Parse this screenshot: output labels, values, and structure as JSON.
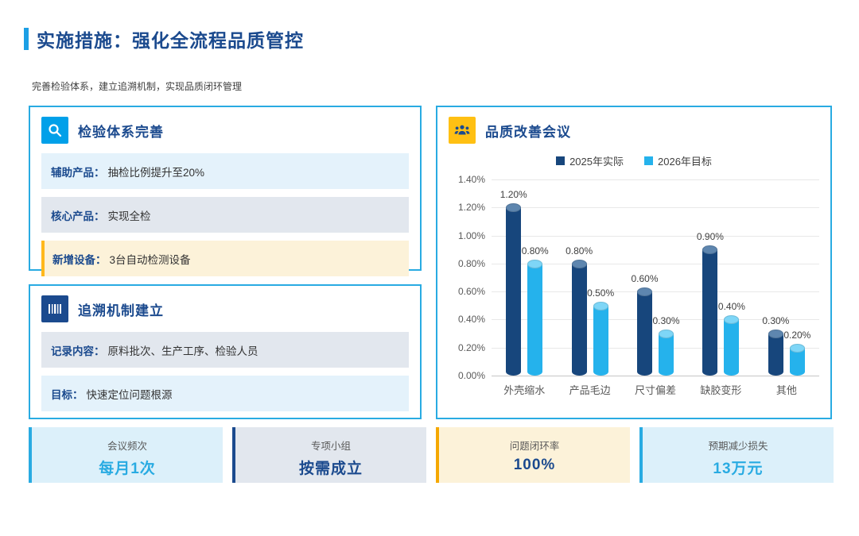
{
  "page": {
    "title": "实施措施：强化全流程品质管控",
    "subtitle": "完善检验体系，建立追溯机制，实现品质闭环管理"
  },
  "panels": {
    "inspection": {
      "icon": "search-icon",
      "title": "检验体系完善",
      "rows": [
        {
          "label": "辅助产品：",
          "text": "抽检比例提升至20%"
        },
        {
          "label": "核心产品：",
          "text": "实现全检"
        },
        {
          "label": "新增设备：",
          "text": "3台自动检测设备"
        }
      ]
    },
    "traceability": {
      "icon": "barcode-icon",
      "title": "追溯机制建立",
      "rows": [
        {
          "label": "记录内容：",
          "text": "原料批次、生产工序、检验人员"
        },
        {
          "label": "目标：",
          "text": "快速定位问题根源"
        }
      ]
    },
    "meeting": {
      "icon": "people-icon",
      "title": "品质改善会议"
    }
  },
  "chart_data": {
    "type": "bar",
    "title": "品质改善会议",
    "categories": [
      "外壳缩水",
      "产品毛边",
      "尺寸偏差",
      "缺胶变形",
      "其他"
    ],
    "series": [
      {
        "name": "2025年实际",
        "color": "#17467C",
        "cap_color": "#5E86AF",
        "values": [
          1.2,
          0.8,
          0.6,
          0.9,
          0.3
        ]
      },
      {
        "name": "2026年目标",
        "color": "#25B2EC",
        "cap_color": "#7ED6F7",
        "values": [
          0.8,
          0.5,
          0.3,
          0.4,
          0.2
        ]
      }
    ],
    "data_labels": [
      "1.20%",
      "0.80%",
      "0.80%",
      "0.50%",
      "0.60%",
      "0.30%",
      "0.90%",
      "0.40%",
      "0.30%",
      "0.20%"
    ],
    "ylim": [
      0,
      1.4
    ],
    "ytick_step": 0.2,
    "yticks": [
      "1.40%",
      "1.20%",
      "1.00%",
      "0.80%",
      "0.60%",
      "0.40%",
      "0.20%",
      "0.00%"
    ],
    "grid": true,
    "legend_position": "top"
  },
  "stats": [
    {
      "label": "会议频次",
      "value": "每月1次"
    },
    {
      "label": "专项小组",
      "value": "按需成立"
    },
    {
      "label": "问题闭环率",
      "value": "100%"
    },
    {
      "label": "预期减少损失",
      "value": "13万元"
    }
  ],
  "colors": {
    "accent_cyan": "#29ABE2",
    "accent_navy": "#1B4A8E",
    "accent_amber": "#FFB81C",
    "row_blue_bg": "#E4F2FB",
    "row_gray_bg": "#E2E7EE",
    "row_yellow_bg": "#FCF2D9"
  }
}
